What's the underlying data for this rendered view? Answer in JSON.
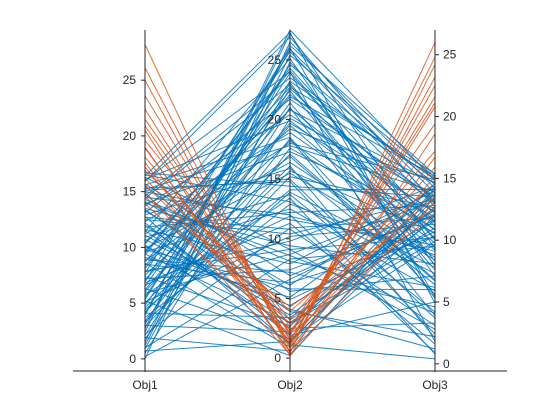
{
  "chart_data": {
    "type": "parallel-coordinates",
    "title": "",
    "categories": [
      "Obj1",
      "Obj2",
      "Obj3"
    ],
    "axes": [
      {
        "name": "Obj1",
        "ylim": [
          -1,
          29.5
        ],
        "ticks": [
          0,
          5,
          10,
          15,
          20,
          25
        ],
        "tick_labels": [
          "0",
          "5",
          "10",
          "15",
          "20",
          "25"
        ]
      },
      {
        "name": "Obj2",
        "ylim": [
          -1,
          27.5
        ],
        "ticks": [
          0,
          5,
          10,
          15,
          20,
          25
        ],
        "tick_labels": [
          "0",
          "5",
          "10",
          "15",
          "20",
          "25"
        ]
      },
      {
        "name": "Obj3",
        "ylim": [
          -0.5,
          27.0
        ],
        "ticks": [
          0,
          5,
          10,
          15,
          20,
          25
        ],
        "tick_labels": [
          "0",
          "5",
          "10",
          "15",
          "20",
          "25"
        ]
      }
    ],
    "grid": false,
    "legend": "none",
    "series": [
      {
        "color": "#0072BD",
        "lines": [
          [
            0.0,
            26.5,
            14.2
          ],
          [
            1.2,
            24.8,
            12.7
          ],
          [
            2.4,
            27.2,
            9.3
          ],
          [
            3.1,
            22.6,
            11.5
          ],
          [
            4.0,
            25.9,
            13.8
          ],
          [
            4.8,
            21.4,
            7.6
          ],
          [
            5.5,
            23.9,
            10.1
          ],
          [
            6.2,
            19.7,
            12.3
          ],
          [
            6.9,
            26.0,
            5.4
          ],
          [
            7.5,
            18.2,
            9.8
          ],
          [
            8.1,
            22.1,
            13.0
          ],
          [
            8.8,
            16.9,
            6.7
          ],
          [
            9.3,
            24.3,
            11.1
          ],
          [
            9.9,
            15.5,
            8.4
          ],
          [
            10.4,
            20.8,
            14.6
          ],
          [
            10.9,
            13.7,
            4.2
          ],
          [
            11.4,
            25.1,
            7.9
          ],
          [
            11.8,
            12.2,
            12.8
          ],
          [
            12.3,
            18.9,
            10.5
          ],
          [
            12.7,
            10.8,
            3.1
          ],
          [
            13.1,
            21.7,
            13.4
          ],
          [
            13.5,
            9.4,
            8.1
          ],
          [
            13.9,
            17.3,
            11.9
          ],
          [
            14.3,
            8.1,
            6.2
          ],
          [
            14.6,
            23.5,
            14.9
          ],
          [
            15.0,
            11.6,
            9.6
          ],
          [
            15.3,
            14.8,
            2.4
          ],
          [
            15.7,
            6.9,
            12.1
          ],
          [
            16.1,
            19.9,
            10.8
          ],
          [
            16.5,
            13.1,
            7.3
          ],
          [
            0.5,
            20.1,
            13.6
          ],
          [
            1.8,
            17.6,
            10.9
          ],
          [
            2.9,
            15.2,
            12.6
          ],
          [
            3.7,
            12.9,
            8.8
          ],
          [
            4.4,
            14.1,
            14.1
          ],
          [
            5.1,
            10.2,
            11.3
          ],
          [
            5.9,
            8.7,
            13.2
          ],
          [
            6.6,
            11.9,
            9.1
          ],
          [
            7.2,
            7.4,
            12.0
          ],
          [
            7.8,
            9.8,
            14.4
          ],
          [
            8.5,
            6.3,
            10.3
          ],
          [
            9.1,
            5.1,
            13.7
          ],
          [
            9.6,
            12.5,
            5.9
          ],
          [
            10.1,
            4.4,
            11.7
          ],
          [
            10.6,
            16.4,
            8.6
          ],
          [
            11.1,
            3.6,
            12.5
          ],
          [
            11.6,
            7.9,
            14.0
          ],
          [
            12.0,
            2.9,
            9.9
          ],
          [
            12.5,
            10.4,
            13.3
          ],
          [
            12.9,
            15.9,
            6.4
          ],
          [
            13.3,
            4.9,
            10.7
          ],
          [
            13.7,
            20.4,
            12.2
          ],
          [
            14.1,
            6.1,
            14.3
          ],
          [
            14.4,
            22.9,
            8.3
          ],
          [
            14.8,
            3.2,
            11.6
          ],
          [
            15.2,
            17.8,
            13.9
          ],
          [
            15.5,
            5.6,
            7.1
          ],
          [
            15.9,
            26.9,
            12.9
          ],
          [
            16.3,
            9.1,
            10.2
          ],
          [
            16.7,
            14.4,
            13.5
          ],
          [
            0.9,
            23.1,
            7.1
          ],
          [
            2.1,
            21.0,
            5.3
          ],
          [
            3.4,
            18.4,
            3.9
          ],
          [
            4.6,
            16.1,
            2.1
          ],
          [
            5.7,
            13.4,
            0.8
          ],
          [
            6.8,
            11.3,
            1.6
          ],
          [
            7.9,
            9.1,
            2.8
          ],
          [
            8.9,
            7.2,
            4.6
          ],
          [
            9.8,
            5.8,
            6.0
          ],
          [
            10.7,
            4.1,
            1.2
          ],
          [
            11.5,
            2.5,
            3.3
          ],
          [
            12.2,
            1.9,
            5.0
          ],
          [
            12.8,
            1.1,
            0.4
          ],
          [
            13.4,
            3.9,
            2.2
          ],
          [
            14.0,
            8.6,
            4.1
          ],
          [
            14.5,
            12.0,
            0.9
          ],
          [
            15.1,
            15.0,
            3.7
          ],
          [
            15.6,
            18.5,
            5.6
          ],
          [
            16.0,
            24.0,
            1.8
          ],
          [
            16.4,
            27.3,
            4.9
          ],
          [
            1.5,
            25.4,
            15.1
          ],
          [
            2.7,
            27.5,
            14.8
          ],
          [
            3.9,
            26.2,
            15.3
          ],
          [
            5.3,
            24.6,
            14.5
          ],
          [
            6.5,
            23.2,
            15.0
          ],
          [
            7.7,
            25.7,
            13.1
          ],
          [
            8.7,
            21.9,
            15.2
          ],
          [
            9.7,
            19.2,
            14.7
          ],
          [
            10.3,
            22.7,
            15.4
          ],
          [
            11.2,
            18.0,
            14.9
          ],
          [
            0.2,
            6.6,
            12.4
          ],
          [
            1.0,
            8.3,
            9.5
          ],
          [
            2.2,
            10.9,
            11.8
          ],
          [
            3.3,
            13.9,
            7.8
          ],
          [
            4.2,
            15.7,
            10.6
          ],
          [
            5.0,
            17.1,
            6.8
          ],
          [
            6.0,
            19.5,
            9.2
          ],
          [
            7.0,
            20.9,
            11.4
          ],
          [
            8.3,
            22.4,
            8.0
          ],
          [
            9.5,
            24.1,
            10.0
          ],
          [
            0.7,
            1.4,
            13.1
          ],
          [
            1.9,
            0.6,
            12.0
          ],
          [
            3.0,
            2.2,
            14.6
          ],
          [
            4.1,
            3.4,
            11.0
          ],
          [
            5.2,
            0.2,
            13.5
          ],
          [
            6.3,
            1.6,
            9.7
          ],
          [
            7.4,
            2.7,
            12.7
          ],
          [
            8.6,
            0.9,
            14.2
          ],
          [
            9.4,
            3.0,
            10.4
          ],
          [
            10.2,
            1.3,
            13.8
          ]
        ]
      },
      {
        "color": "#D95319",
        "lines": [
          [
            28.2,
            0.4,
            26.0
          ],
          [
            26.1,
            1.0,
            24.8
          ],
          [
            25.0,
            0.8,
            23.2
          ],
          [
            23.6,
            1.9,
            21.6
          ],
          [
            22.4,
            1.5,
            20.8
          ],
          [
            21.5,
            2.6,
            19.4
          ],
          [
            20.5,
            0.2,
            18.6
          ],
          [
            19.6,
            3.2,
            17.2
          ],
          [
            18.9,
            1.2,
            16.7
          ],
          [
            18.1,
            2.3,
            15.9
          ],
          [
            17.6,
            0.6,
            15.2
          ],
          [
            16.9,
            3.9,
            14.6
          ],
          [
            16.2,
            1.7,
            14.0
          ],
          [
            15.6,
            2.9,
            13.5
          ],
          [
            15.0,
            0.3,
            13.1
          ],
          [
            14.5,
            4.3,
            12.6
          ],
          [
            13.9,
            2.0,
            12.2
          ],
          [
            17.2,
            1.4,
            22.5
          ],
          [
            19.0,
            0.5,
            24.2
          ],
          [
            20.9,
            2.1,
            21.1
          ]
        ]
      }
    ]
  }
}
